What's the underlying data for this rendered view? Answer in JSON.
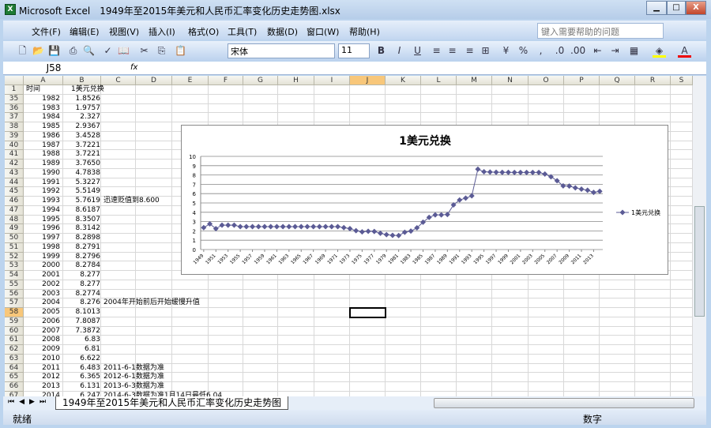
{
  "window": {
    "title": "Microsoft Excel　1949年至2015年美元和人民币汇率变化历史走势图.xlsx",
    "minimize": "▁",
    "maximize": "□",
    "close": "X"
  },
  "menu": [
    "文件(F)",
    "编辑(E)",
    "视图(V)",
    "插入(I)",
    "格式(O)",
    "工具(T)",
    "数据(D)",
    "窗口(W)",
    "帮助(H)"
  ],
  "help_placeholder": "键入需要帮助的问题",
  "toolbar": {
    "font": "宋体",
    "size": "11",
    "bold": "B",
    "italic": "I",
    "underline": "U",
    "percent": "%",
    "comma": ","
  },
  "formula_bar": {
    "name_box": "J58",
    "fx": "fx",
    "value": ""
  },
  "columns": [
    "A",
    "B",
    "C",
    "D",
    "E",
    "F",
    "G",
    "H",
    "I",
    "J",
    "K",
    "L",
    "M",
    "N",
    "O",
    "P",
    "Q",
    "R",
    "S"
  ],
  "selected_cell": "J58",
  "rows": [
    [
      "1",
      "时间",
      "1美元兑换",
      ""
    ],
    [
      "35",
      "1982",
      "1.8526",
      ""
    ],
    [
      "36",
      "1983",
      "1.9757",
      ""
    ],
    [
      "37",
      "1984",
      "2.327",
      ""
    ],
    [
      "38",
      "1985",
      "2.9367",
      ""
    ],
    [
      "39",
      "1986",
      "3.4528",
      ""
    ],
    [
      "40",
      "1987",
      "3.7221",
      ""
    ],
    [
      "41",
      "1988",
      "3.7221",
      ""
    ],
    [
      "42",
      "1989",
      "3.7650",
      ""
    ],
    [
      "43",
      "1990",
      "4.7838",
      ""
    ],
    [
      "44",
      "1991",
      "5.3227",
      ""
    ],
    [
      "45",
      "1992",
      "5.5149",
      ""
    ],
    [
      "46",
      "1993",
      "5.7619",
      "迅速贬值到8.600"
    ],
    [
      "47",
      "1994",
      "8.6187",
      ""
    ],
    [
      "48",
      "1995",
      "8.3507",
      ""
    ],
    [
      "49",
      "1996",
      "8.3142",
      ""
    ],
    [
      "50",
      "1997",
      "8.2898",
      ""
    ],
    [
      "51",
      "1998",
      "8.2791",
      ""
    ],
    [
      "52",
      "1999",
      "8.2796",
      ""
    ],
    [
      "53",
      "2000",
      "8.2784",
      ""
    ],
    [
      "54",
      "2001",
      "8.277",
      ""
    ],
    [
      "55",
      "2002",
      "8.277",
      ""
    ],
    [
      "56",
      "2003",
      "8.2774",
      ""
    ],
    [
      "57",
      "2004",
      "8.276",
      "2004年开始前后开始缓慢升值"
    ],
    [
      "58",
      "2005",
      "8.1013",
      ""
    ],
    [
      "59",
      "2006",
      "7.8087",
      ""
    ],
    [
      "60",
      "2007",
      "7.3872",
      ""
    ],
    [
      "61",
      "2008",
      "6.83",
      ""
    ],
    [
      "62",
      "2009",
      "6.81",
      ""
    ],
    [
      "63",
      "2010",
      "6.622",
      ""
    ],
    [
      "64",
      "2011",
      "6.483",
      "2011-6-1数据为准"
    ],
    [
      "65",
      "2012",
      "6.365",
      "2012-6-1数据为准"
    ],
    [
      "66",
      "2013",
      "6.131",
      "2013-6-3数据为准"
    ],
    [
      "67",
      "2014",
      "6.247",
      "2014-6-3数据为准1月14日最低6.04"
    ]
  ],
  "sheet_tab": "1949年至2015年美元和人民币汇率变化历史走势图",
  "status": {
    "ready": "就绪",
    "num": "数字"
  },
  "chart_data": {
    "type": "line",
    "title": "1美元兑换",
    "legend": "right",
    "series": [
      {
        "name": "1美元兑换",
        "color": "#5b5b95",
        "marker": "diamond"
      }
    ],
    "x": [
      1949,
      1950,
      1951,
      1952,
      1953,
      1954,
      1955,
      1956,
      1957,
      1958,
      1959,
      1960,
      1961,
      1962,
      1963,
      1964,
      1965,
      1966,
      1967,
      1968,
      1969,
      1970,
      1971,
      1972,
      1973,
      1974,
      1975,
      1976,
      1977,
      1978,
      1979,
      1980,
      1981,
      1982,
      1983,
      1984,
      1985,
      1986,
      1987,
      1988,
      1989,
      1990,
      1991,
      1992,
      1993,
      1994,
      1995,
      1996,
      1997,
      1998,
      1999,
      2000,
      2001,
      2002,
      2003,
      2004,
      2005,
      2006,
      2007,
      2008,
      2009,
      2010,
      2011,
      2012,
      2013,
      2014
    ],
    "values": [
      2.35,
      2.75,
      2.24,
      2.62,
      2.62,
      2.62,
      2.46,
      2.46,
      2.46,
      2.46,
      2.46,
      2.46,
      2.46,
      2.46,
      2.46,
      2.46,
      2.46,
      2.46,
      2.46,
      2.46,
      2.46,
      2.46,
      2.46,
      2.35,
      2.25,
      2.02,
      1.9,
      1.96,
      1.94,
      1.75,
      1.6,
      1.53,
      1.5,
      1.8526,
      1.9757,
      2.327,
      2.9367,
      3.4528,
      3.7221,
      3.7221,
      3.765,
      4.7838,
      5.3227,
      5.5149,
      5.7619,
      8.6187,
      8.3507,
      8.3142,
      8.2898,
      8.2791,
      8.2796,
      8.2784,
      8.277,
      8.277,
      8.2774,
      8.276,
      8.1013,
      7.8087,
      7.3872,
      6.83,
      6.81,
      6.622,
      6.483,
      6.365,
      6.131,
      6.247
    ],
    "ylim": [
      0,
      10
    ],
    "yticks": [
      0,
      1,
      2,
      3,
      4,
      5,
      6,
      7,
      8,
      9,
      10
    ],
    "xtick_labels": [
      "1949",
      "1951",
      "1953",
      "1955",
      "1957",
      "1959",
      "1961",
      "1963",
      "1965",
      "1967",
      "1969",
      "1971",
      "1973",
      "1975",
      "1977",
      "1979",
      "1981",
      "1983",
      "1985",
      "1987",
      "1989",
      "1991",
      "1993",
      "1995",
      "1997",
      "1999",
      "2001",
      "2003",
      "2005",
      "2007",
      "2009",
      "2011",
      "2013"
    ],
    "grid": true
  }
}
